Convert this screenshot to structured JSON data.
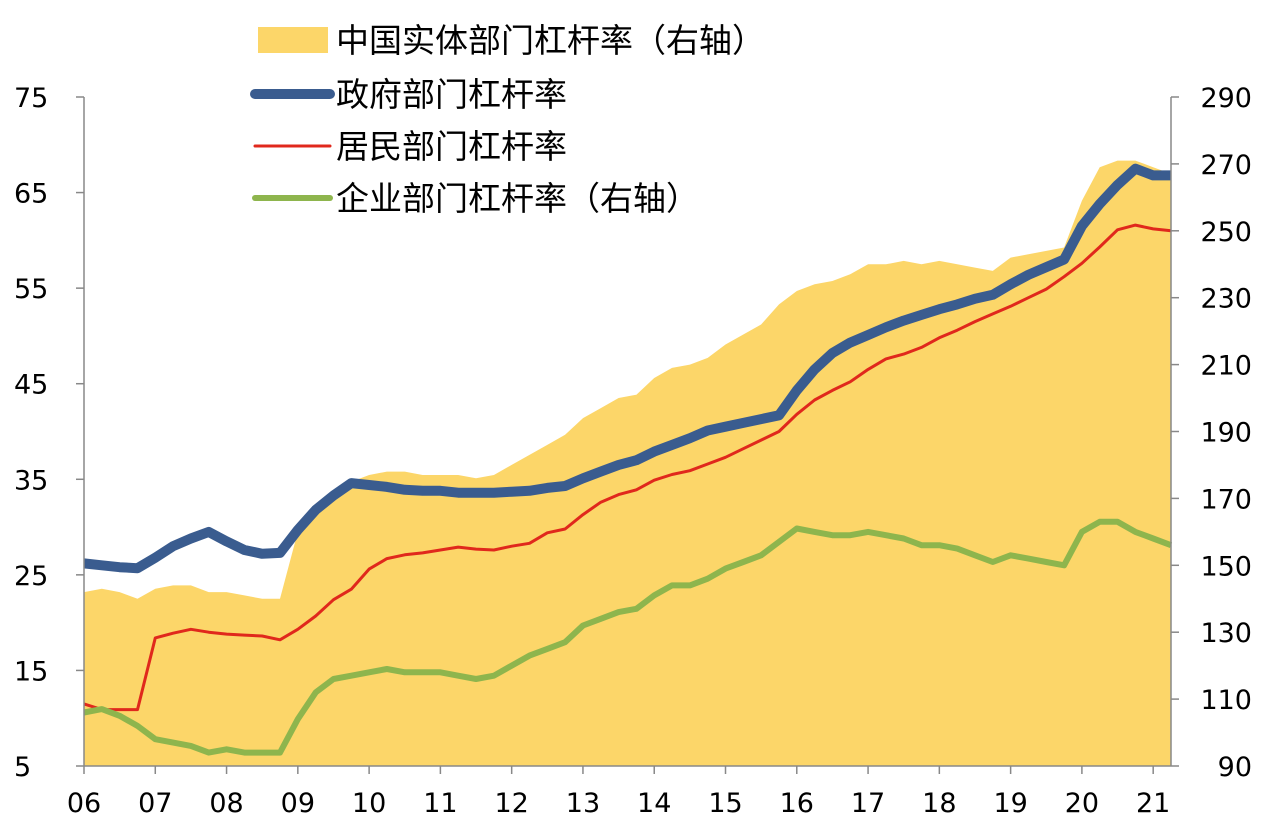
{
  "chart_data": {
    "type": "line",
    "title": "",
    "xlabel": "",
    "ylabel": "",
    "x": [
      2006.0,
      2006.25,
      2006.5,
      2006.75,
      2007.0,
      2007.25,
      2007.5,
      2007.75,
      2008.0,
      2008.25,
      2008.5,
      2008.75,
      2009.0,
      2009.25,
      2009.5,
      2009.75,
      2010.0,
      2010.25,
      2010.5,
      2010.75,
      2011.0,
      2011.25,
      2011.5,
      2011.75,
      2012.0,
      2012.25,
      2012.5,
      2012.75,
      2013.0,
      2013.25,
      2013.5,
      2013.75,
      2014.0,
      2014.25,
      2014.5,
      2014.75,
      2015.0,
      2015.25,
      2015.5,
      2015.75,
      2016.0,
      2016.25,
      2016.5,
      2016.75,
      2017.0,
      2017.25,
      2017.5,
      2017.75,
      2018.0,
      2018.25,
      2018.5,
      2018.75,
      2019.0,
      2019.25,
      2019.5,
      2019.75,
      2020.0,
      2020.25,
      2020.5,
      2020.75,
      2021.0,
      2021.25
    ],
    "x_tick_labels": [
      "06",
      "07",
      "08",
      "09",
      "10",
      "11",
      "12",
      "13",
      "14",
      "15",
      "16",
      "17",
      "18",
      "19",
      "20",
      "21"
    ],
    "x_tick_values": [
      2006,
      2007,
      2008,
      2009,
      2010,
      2011,
      2012,
      2013,
      2014,
      2015,
      2016,
      2017,
      2018,
      2019,
      2020,
      2021
    ],
    "ylim_left": [
      5,
      75
    ],
    "yticks_left": [
      5,
      15,
      25,
      35,
      45,
      55,
      65,
      75
    ],
    "ylim_right": [
      90,
      290
    ],
    "yticks_right": [
      90,
      110,
      130,
      150,
      170,
      190,
      210,
      230,
      250,
      270,
      290
    ],
    "grid": false,
    "legend_position": "top-left",
    "series": [
      {
        "name": "中国实体部门杠杆率（右轴）",
        "type": "area",
        "axis": "right",
        "color": "#FCD669",
        "values": [
          142,
          143,
          142,
          140,
          143,
          144,
          144,
          142,
          142,
          141,
          140,
          140,
          160,
          166,
          172,
          175,
          177,
          178,
          178,
          177,
          177,
          177,
          176,
          177,
          180,
          183,
          186,
          189,
          194,
          197,
          200,
          201,
          206,
          209,
          210,
          212,
          216,
          219,
          222,
          228,
          232,
          234,
          235,
          237,
          240,
          240,
          241,
          240,
          241,
          240,
          239,
          238,
          242,
          243,
          244,
          245,
          259,
          269,
          271,
          271,
          269,
          267
        ]
      },
      {
        "name": "政府部门杠杆率",
        "type": "line",
        "axis": "left",
        "color": "#3A5C8F",
        "values": [
          26.2,
          26.0,
          25.8,
          25.7,
          26.8,
          28.0,
          28.8,
          29.5,
          28.5,
          27.6,
          27.2,
          27.3,
          29.7,
          31.8,
          33.3,
          34.6,
          34.4,
          34.2,
          33.9,
          33.8,
          33.8,
          33.6,
          33.6,
          33.6,
          33.7,
          33.8,
          34.1,
          34.3,
          35.1,
          35.8,
          36.5,
          37.0,
          37.9,
          38.6,
          39.3,
          40.1,
          40.5,
          40.9,
          41.3,
          41.7,
          44.3,
          46.5,
          48.2,
          49.3,
          50.1,
          50.9,
          51.6,
          52.2,
          52.8,
          53.3,
          53.9,
          54.3,
          55.4,
          56.4,
          57.2,
          58.0,
          61.5,
          63.8,
          65.8,
          67.5,
          66.8,
          66.8
        ]
      },
      {
        "name": "居民部门杠杆率",
        "type": "line",
        "axis": "left",
        "color": "#E0281C",
        "values": [
          11.5,
          10.9,
          10.9,
          10.9,
          18.4,
          18.9,
          19.3,
          19.0,
          18.8,
          18.7,
          18.6,
          18.2,
          19.3,
          20.7,
          22.4,
          23.5,
          25.6,
          26.7,
          27.1,
          27.3,
          27.6,
          27.9,
          27.7,
          27.6,
          28.0,
          28.3,
          29.4,
          29.8,
          31.3,
          32.6,
          33.4,
          33.9,
          34.9,
          35.5,
          35.9,
          36.6,
          37.3,
          38.2,
          39.1,
          40.0,
          41.8,
          43.3,
          44.3,
          45.2,
          46.5,
          47.6,
          48.1,
          48.8,
          49.8,
          50.6,
          51.5,
          52.3,
          53.1,
          54.0,
          54.9,
          56.2,
          57.6,
          59.3,
          61.1,
          61.6,
          61.2,
          61.0
        ]
      },
      {
        "name": "企业部门杠杆率（右轴）",
        "type": "line",
        "axis": "right",
        "color": "#8EB54D",
        "values": [
          106,
          107,
          105,
          102,
          98,
          97,
          96,
          94,
          95,
          94,
          94,
          94,
          104,
          112,
          116,
          117,
          118,
          119,
          118,
          118,
          118,
          117,
          116,
          117,
          120,
          123,
          125,
          127,
          132,
          134,
          136,
          137,
          141,
          144,
          144,
          146,
          149,
          151,
          153,
          157,
          161,
          160,
          159,
          159,
          160,
          159,
          158,
          156,
          156,
          155,
          153,
          151,
          153,
          152,
          151,
          150,
          160,
          163,
          163,
          160,
          158,
          156
        ]
      }
    ]
  }
}
